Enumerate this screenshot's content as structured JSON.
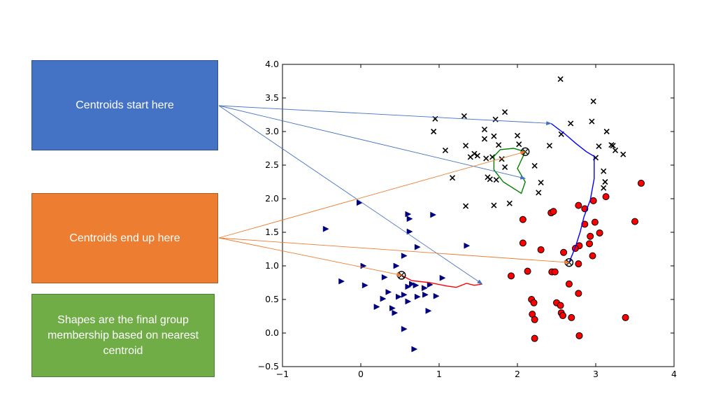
{
  "annotations": {
    "start_label": "Centroids start here",
    "end_label": "Centroids end up here",
    "shapes_label": "Shapes are the final group membership based on nearest centroid",
    "start_color": "#4472c4",
    "end_color": "#ed7d31",
    "shapes_color": "#70ad47"
  },
  "chart_data": {
    "type": "scatter",
    "title": "",
    "xlabel": "",
    "ylabel": "",
    "xlim": [
      -1,
      4
    ],
    "ylim": [
      -0.5,
      4.0
    ],
    "xticks": [
      -1,
      0,
      1,
      2,
      3,
      4
    ],
    "yticks": [
      -0.5,
      0.0,
      0.5,
      1.0,
      1.5,
      2.0,
      2.5,
      3.0,
      3.5,
      4.0
    ],
    "xtick_labels": [
      "−1",
      "0",
      "1",
      "2",
      "3",
      "4"
    ],
    "ytick_labels": [
      "−0.5",
      "0.0",
      "0.5",
      "1.0",
      "1.5",
      "2.0",
      "2.5",
      "3.0",
      "3.5",
      "4.0"
    ],
    "grid": false,
    "series": [
      {
        "marker": "x",
        "color": "#000000",
        "points": [
          [
            2.55,
            3.78
          ],
          [
            2.97,
            3.45
          ],
          [
            1.32,
            3.23
          ],
          [
            1.84,
            3.29
          ],
          [
            0.95,
            3.19
          ],
          [
            1.72,
            3.18
          ],
          [
            0.93,
            3.0
          ],
          [
            1.58,
            3.03
          ],
          [
            1.7,
            2.93
          ],
          [
            2.0,
            2.94
          ],
          [
            1.34,
            2.79
          ],
          [
            1.58,
            2.89
          ],
          [
            1.76,
            2.8
          ],
          [
            2.02,
            2.81
          ],
          [
            1.08,
            2.72
          ],
          [
            1.45,
            2.67
          ],
          [
            1.49,
            2.64
          ],
          [
            1.4,
            2.62
          ],
          [
            1.68,
            2.62
          ],
          [
            1.6,
            2.6
          ],
          [
            1.8,
            2.59
          ],
          [
            1.84,
            2.47
          ],
          [
            2.22,
            2.49
          ],
          [
            2.41,
            2.79
          ],
          [
            2.56,
            2.96
          ],
          [
            2.68,
            3.12
          ],
          [
            2.95,
            3.15
          ],
          [
            3.14,
            3.0
          ],
          [
            3.04,
            2.78
          ],
          [
            3.2,
            2.8
          ],
          [
            3.22,
            2.79
          ],
          [
            3.25,
            2.72
          ],
          [
            3.35,
            2.66
          ],
          [
            3.0,
            2.61
          ],
          [
            3.1,
            2.41
          ],
          [
            3.12,
            2.25
          ],
          [
            3.1,
            2.16
          ],
          [
            1.17,
            2.31
          ],
          [
            1.62,
            2.32
          ],
          [
            1.65,
            2.29
          ],
          [
            1.73,
            2.28
          ],
          [
            2.3,
            2.24
          ],
          [
            2.27,
            2.09
          ],
          [
            1.34,
            1.89
          ],
          [
            1.7,
            1.9
          ],
          [
            1.9,
            1.93
          ]
        ]
      },
      {
        "marker": "triangle-right",
        "color": "#00007f",
        "points": [
          [
            -0.45,
            1.55
          ],
          [
            -0.02,
            1.94
          ],
          [
            0.6,
            1.77
          ],
          [
            0.92,
            1.76
          ],
          [
            0.62,
            1.7
          ],
          [
            0.62,
            1.51
          ],
          [
            0.72,
            1.28
          ],
          [
            1.35,
            1.3
          ],
          [
            0.55,
            1.15
          ],
          [
            0.45,
            1.0
          ],
          [
            0.03,
            1.0
          ],
          [
            -0.25,
            0.77
          ],
          [
            0.05,
            0.71
          ],
          [
            0.3,
            0.83
          ],
          [
            0.65,
            0.73
          ],
          [
            0.7,
            0.71
          ],
          [
            0.6,
            0.69
          ],
          [
            0.81,
            0.67
          ],
          [
            0.88,
            0.72
          ],
          [
            1.04,
            0.82
          ],
          [
            0.35,
            0.61
          ],
          [
            0.55,
            0.57
          ],
          [
            0.28,
            0.51
          ],
          [
            0.48,
            0.54
          ],
          [
            0.72,
            0.54
          ],
          [
            0.82,
            0.57
          ],
          [
            0.96,
            0.55
          ],
          [
            0.6,
            0.47
          ],
          [
            0.2,
            0.39
          ],
          [
            0.4,
            0.37
          ],
          [
            0.43,
            0.3
          ],
          [
            0.86,
            0.33
          ],
          [
            0.55,
            0.06
          ],
          [
            0.68,
            -0.24
          ]
        ]
      },
      {
        "marker": "circle",
        "color": "#ff0000",
        "points": [
          [
            3.58,
            2.23
          ],
          [
            3.13,
            2.03
          ],
          [
            2.78,
            1.9
          ],
          [
            2.86,
            1.85
          ],
          [
            2.97,
            1.97
          ],
          [
            2.43,
            1.79
          ],
          [
            2.46,
            1.81
          ],
          [
            2.07,
            1.69
          ],
          [
            2.86,
            1.62
          ],
          [
            2.99,
            1.65
          ],
          [
            3.5,
            1.66
          ],
          [
            3.05,
            1.49
          ],
          [
            2.93,
            1.44
          ],
          [
            2.92,
            1.33
          ],
          [
            2.79,
            1.3
          ],
          [
            2.74,
            1.26
          ],
          [
            2.59,
            1.2
          ],
          [
            2.3,
            1.24
          ],
          [
            2.07,
            1.34
          ],
          [
            2.96,
            1.15
          ],
          [
            2.78,
            1.03
          ],
          [
            2.13,
            0.92
          ],
          [
            2.44,
            0.91
          ],
          [
            2.48,
            0.91
          ],
          [
            1.92,
            0.85
          ],
          [
            2.66,
            0.73
          ],
          [
            2.78,
            0.59
          ],
          [
            2.18,
            0.5
          ],
          [
            2.21,
            0.45
          ],
          [
            2.5,
            0.45
          ],
          [
            2.55,
            0.41
          ],
          [
            2.56,
            0.3
          ],
          [
            2.58,
            0.26
          ],
          [
            2.19,
            0.28
          ],
          [
            2.22,
            0.2
          ],
          [
            2.69,
            0.23
          ],
          [
            3.38,
            0.23
          ],
          [
            2.79,
            -0.04
          ],
          [
            2.22,
            -0.08
          ]
        ]
      }
    ],
    "centroid_paths": [
      {
        "color": "#ff0000",
        "points": [
          [
            0.52,
            0.86
          ],
          [
            0.65,
            0.78
          ],
          [
            0.88,
            0.75
          ],
          [
            1.1,
            0.7
          ],
          [
            1.22,
            0.68
          ],
          [
            1.35,
            0.74
          ],
          [
            1.45,
            0.71
          ],
          [
            1.55,
            0.73
          ]
        ]
      },
      {
        "color": "#008000",
        "points": [
          [
            2.1,
            2.7
          ],
          [
            1.95,
            2.75
          ],
          [
            1.78,
            2.73
          ],
          [
            1.7,
            2.63
          ],
          [
            1.7,
            2.43
          ],
          [
            1.82,
            2.25
          ],
          [
            2.05,
            2.08
          ],
          [
            2.1,
            2.25
          ],
          [
            2.0,
            2.45
          ],
          [
            2.1,
            2.7
          ]
        ]
      },
      {
        "color": "#0000ff",
        "points": [
          [
            2.43,
            3.12
          ],
          [
            2.6,
            2.97
          ],
          [
            2.75,
            2.82
          ],
          [
            2.88,
            2.7
          ],
          [
            2.98,
            2.63
          ],
          [
            2.98,
            2.3
          ],
          [
            2.93,
            1.98
          ],
          [
            2.85,
            1.73
          ],
          [
            2.8,
            1.5
          ],
          [
            2.74,
            1.28
          ],
          [
            2.66,
            1.05
          ]
        ]
      }
    ],
    "final_centroids": [
      [
        0.52,
        0.86
      ],
      [
        2.1,
        2.7
      ],
      [
        2.66,
        1.05
      ]
    ],
    "start_arrow_targets": [
      [
        2.43,
        3.12
      ],
      [
        2.1,
        2.3
      ],
      [
        1.55,
        0.73
      ]
    ],
    "end_arrow_targets": [
      [
        2.1,
        2.7
      ],
      [
        2.66,
        1.05
      ],
      [
        0.52,
        0.86
      ]
    ]
  }
}
